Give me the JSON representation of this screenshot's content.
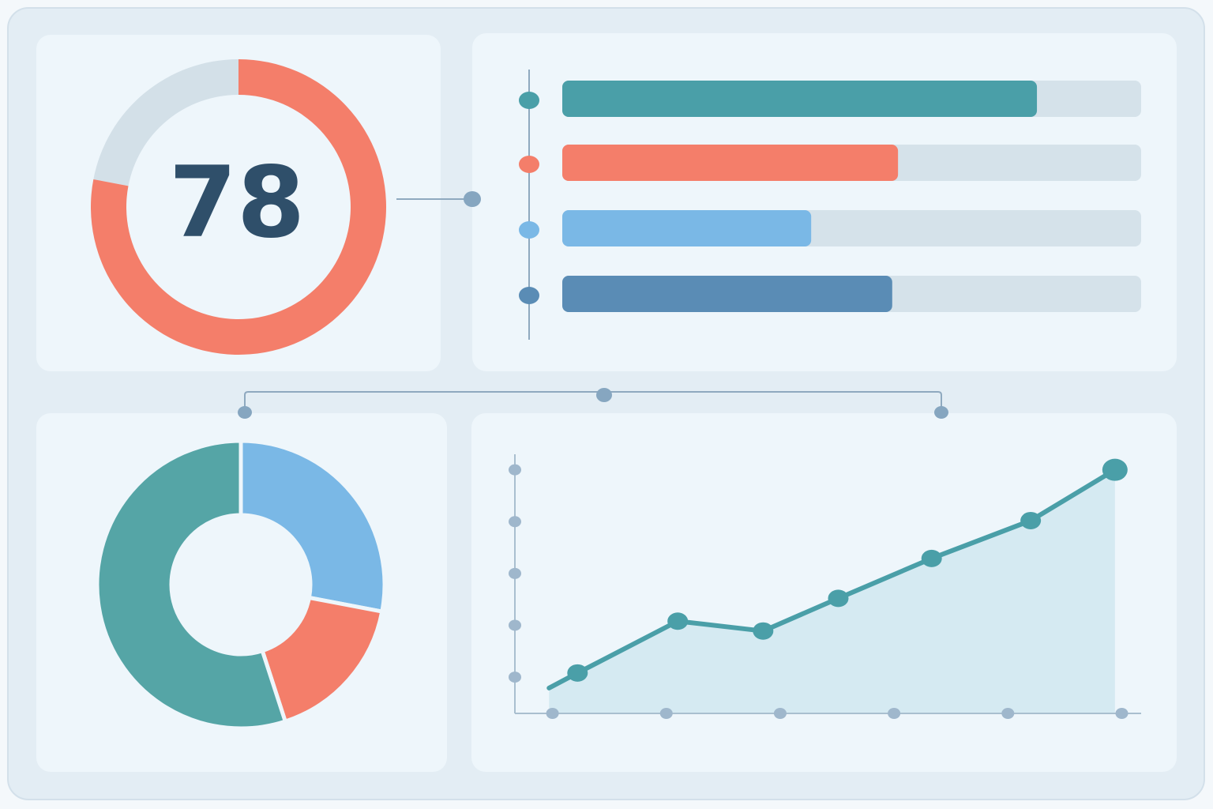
{
  "chart_data": [
    {
      "type": "gauge",
      "value": 78,
      "lim": [
        0,
        100
      ],
      "color": "#f47e6a",
      "track_color": "#d3e0e8"
    },
    {
      "type": "bar",
      "orientation": "horizontal",
      "categories": [
        null,
        null,
        null,
        null
      ],
      "values": [
        82,
        58,
        43,
        57
      ],
      "colors": [
        "#4a9fa8",
        "#f47e6a",
        "#7ab8e6",
        "#5a8cb5"
      ],
      "xlim": [
        0,
        100
      ],
      "track_color": "#d5e2ea"
    },
    {
      "type": "donut",
      "values": [
        28,
        17,
        55
      ],
      "colors": [
        "#7ab8e6",
        "#f47e6a",
        "#55a5a6"
      ]
    },
    {
      "type": "area",
      "x": [
        -0.03,
        0.22,
        1.1,
        1.85,
        2.51,
        3.33,
        4.2,
        4.94
      ],
      "values": [
        0.79,
        1.08,
        2.08,
        1.89,
        2.52,
        3.29,
        4.02,
        5.0
      ],
      "color": "#4a9fa8",
      "fill": "#d5eaf2",
      "xlim": [
        -0.33,
        5.17
      ],
      "ylim": [
        0.3,
        5.3
      ],
      "xticks": [
        0,
        1,
        2,
        3,
        4,
        5
      ],
      "yticks": [
        1,
        2,
        3,
        4,
        5
      ]
    }
  ]
}
